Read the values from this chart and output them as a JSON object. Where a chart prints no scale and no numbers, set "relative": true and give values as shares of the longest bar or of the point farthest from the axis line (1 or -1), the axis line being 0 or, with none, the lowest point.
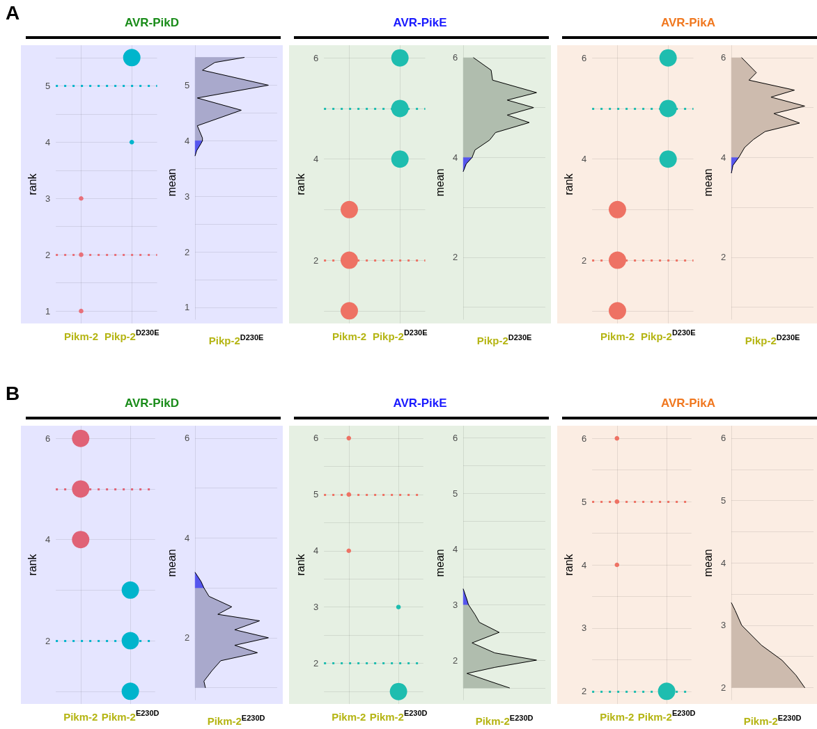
{
  "chart_data": [
    {
      "type": "bubble",
      "title": "AVR-PikD",
      "annotations": [
        "A"
      ],
      "ylabel": "rank",
      "categories": [
        "Pikm-2",
        "Pikp-2$^{D230E}$"
      ],
      "ylim": [
        0.78,
        5.72
      ],
      "yticks": [
        1,
        {
          "value": 1.5,
          "label": null
        },
        2,
        {
          "value": 2.5,
          "label": null
        },
        3,
        {
          "value": 3.5,
          "label": null
        },
        4,
        {
          "value": 4.5,
          "label": null
        },
        5,
        {
          "value": 5.5,
          "label": null
        }
      ],
      "grid": true,
      "ref_lines": [
        {
          "axis": "y",
          "value": 2,
          "color": "#e8707a",
          "line_style": "dotted"
        },
        {
          "axis": "y",
          "value": 5,
          "color": "#00b5cc",
          "line_style": "dotted"
        }
      ],
      "series": [
        {
          "color": "#e8707a",
          "x": [
            "Pikm-2",
            "Pikm-2",
            "Pikm-2"
          ],
          "values": [
            1,
            2,
            3
          ],
          "sizes": [
            0.07,
            0.07,
            0.07
          ]
        },
        {
          "color": "#00b5cc",
          "x": [
            "Pikp-2$^{D230E}$",
            "Pikp-2$^{D230E}$"
          ],
          "values": [
            4,
            5.5
          ],
          "sizes": [
            0.07,
            1
          ]
        }
      ]
    },
    {
      "type": "area",
      "orientation": "horizontal",
      "relative": true,
      "ylabel": "mean",
      "xlabel": "Pikp-2$^{D230E}$",
      "ylim": [
        0.78,
        5.72
      ],
      "yticks": [
        1,
        {
          "value": 1.5,
          "label": null
        },
        2,
        {
          "value": 2.5,
          "label": null
        },
        3,
        {
          "value": 3.5,
          "label": null
        },
        4,
        {
          "value": 4.5,
          "label": null
        },
        5,
        {
          "value": 5.5,
          "label": null
        }
      ],
      "grid": true,
      "series": [
        {
          "color": "#a9a9cc",
          "x": [
            5.5,
            5.41,
            5.27,
            5.0,
            4.77,
            4.55,
            4.27,
            4.05,
            4.0
          ],
          "values": [
            0.67,
            0.27,
            0.1,
            1.0,
            0.03,
            0.63,
            0.03,
            0.1,
            0.1
          ]
        },
        {
          "color": "#5555ee",
          "x": [
            4.0,
            3.95,
            3.82,
            3.73
          ],
          "values": [
            0.1,
            0.08,
            0.02,
            0
          ]
        }
      ]
    },
    {
      "type": "bubble",
      "title": "AVR-PikE",
      "ylabel": "rank",
      "categories": [
        "Pikm-2",
        "Pikp-2$^{D230E}$"
      ],
      "ylim": [
        0.75,
        6.25
      ],
      "yticks": [
        {
          "value": 1,
          "label": null
        },
        2,
        {
          "value": 3,
          "label": null
        },
        4,
        {
          "value": 5,
          "label": null
        },
        6
      ],
      "grid": true,
      "ref_lines": [
        {
          "axis": "y",
          "value": 2,
          "color": "#ee7264",
          "line_style": "dotted"
        },
        {
          "axis": "y",
          "value": 5,
          "color": "#1ebdaf",
          "line_style": "dotted"
        }
      ],
      "series": [
        {
          "color": "#ee7264",
          "x": [
            "Pikm-2",
            "Pikm-2",
            "Pikm-2"
          ],
          "values": [
            1,
            2,
            3
          ],
          "sizes": [
            1,
            1,
            1
          ]
        },
        {
          "color": "#1ebdaf",
          "x": [
            "Pikp-2$^{D230E}$",
            "Pikp-2$^{D230E}$",
            "Pikp-2$^{D230E}$"
          ],
          "values": [
            4,
            5,
            6
          ],
          "sizes": [
            1,
            1,
            1
          ]
        }
      ]
    },
    {
      "type": "area",
      "orientation": "horizontal",
      "relative": true,
      "ylabel": "mean",
      "xlabel": "Pikp-2$^{D230E}$",
      "ylim": [
        0.75,
        6.25
      ],
      "yticks": [
        {
          "value": 1,
          "label": null
        },
        2,
        {
          "value": 3,
          "label": null
        },
        4,
        {
          "value": 5,
          "label": null
        },
        6
      ],
      "grid": true,
      "series": [
        {
          "color": "#b0bdae",
          "x": [
            6.0,
            5.75,
            5.55,
            5.3,
            5.15,
            5.0,
            4.85,
            4.7,
            4.5,
            4.35,
            4.15,
            4.0
          ],
          "values": [
            0.14,
            0.38,
            0.4,
            1.0,
            0.6,
            0.96,
            0.6,
            0.9,
            0.44,
            0.36,
            0.16,
            0.12
          ]
        },
        {
          "color": "#5555ee",
          "x": [
            4.0,
            3.87,
            3.72
          ],
          "values": [
            0.12,
            0.04,
            0
          ]
        }
      ]
    },
    {
      "type": "bubble",
      "title": "AVR-PikA",
      "ylabel": "rank",
      "categories": [
        "Pikm-2",
        "Pikp-2$^{D230E}$"
      ],
      "ylim": [
        0.75,
        6.25
      ],
      "yticks": [
        {
          "value": 1,
          "label": null
        },
        2,
        {
          "value": 3,
          "label": null
        },
        4,
        {
          "value": 5,
          "label": null
        },
        6
      ],
      "grid": true,
      "ref_lines": [
        {
          "axis": "y",
          "value": 2,
          "color": "#ee7264",
          "line_style": "dotted"
        },
        {
          "axis": "y",
          "value": 5,
          "color": "#1ebdaf",
          "line_style": "dotted"
        }
      ],
      "series": [
        {
          "color": "#ee7264",
          "x": [
            "Pikm-2",
            "Pikm-2",
            "Pikm-2"
          ],
          "values": [
            1,
            2,
            3
          ],
          "sizes": [
            1,
            1,
            1
          ]
        },
        {
          "color": "#1ebdaf",
          "x": [
            "Pikp-2$^{D230E}$",
            "Pikp-2$^{D230E}$",
            "Pikp-2$^{D230E}$"
          ],
          "values": [
            4,
            5,
            6
          ],
          "sizes": [
            1,
            1,
            1
          ]
        }
      ]
    },
    {
      "type": "area",
      "orientation": "horizontal",
      "relative": true,
      "ylabel": "mean",
      "xlabel": "Pikp-2$^{D230E}$",
      "ylim": [
        0.75,
        6.25
      ],
      "yticks": [
        {
          "value": 1,
          "label": null
        },
        2,
        {
          "value": 3,
          "label": null
        },
        4,
        {
          "value": 5,
          "label": null
        },
        6
      ],
      "grid": true,
      "series": [
        {
          "color": "#cdbbae",
          "x": [
            6.0,
            5.7,
            5.55,
            5.35,
            5.21,
            5.03,
            4.88,
            4.69,
            4.52,
            4.36,
            4.2,
            4.0
          ],
          "values": [
            0.14,
            0.34,
            0.24,
            0.86,
            0.54,
            1.0,
            0.58,
            0.93,
            0.46,
            0.3,
            0.18,
            0.1
          ]
        },
        {
          "color": "#5555ee",
          "x": [
            4.0,
            3.84,
            3.69
          ],
          "values": [
            0.1,
            0.02,
            0
          ]
        }
      ]
    },
    {
      "type": "bubble",
      "title": "AVR-PikD",
      "annotations": [
        "B"
      ],
      "ylabel": "rank",
      "categories": [
        "Pikm-2",
        "Pikm-2$^{E230D}$"
      ],
      "ylim": [
        0.75,
        6.25
      ],
      "yticks": [
        {
          "value": 1,
          "label": null
        },
        2,
        {
          "value": 3,
          "label": null
        },
        4,
        {
          "value": 5,
          "label": null
        },
        6
      ],
      "grid": true,
      "ref_lines": [
        {
          "axis": "y",
          "value": 5,
          "color": "#e06276",
          "line_style": "dotted"
        },
        {
          "axis": "y",
          "value": 2,
          "color": "#00b4cc",
          "line_style": "dotted"
        }
      ],
      "series": [
        {
          "color": "#e06276",
          "x": [
            "Pikm-2",
            "Pikm-2",
            "Pikm-2"
          ],
          "values": [
            4,
            5,
            6
          ],
          "sizes": [
            1,
            1,
            1
          ]
        },
        {
          "color": "#00b4cc",
          "x": [
            "Pikm-2$^{E230D}$",
            "Pikm-2$^{E230D}$",
            "Pikm-2$^{E230D}$"
          ],
          "values": [
            1,
            2,
            3
          ],
          "sizes": [
            1,
            1,
            1
          ]
        }
      ]
    },
    {
      "type": "area",
      "orientation": "horizontal",
      "relative": true,
      "ylabel": "mean",
      "xlabel": "Pikm-2$^{E230D}$",
      "ylim": [
        0.75,
        6.25
      ],
      "yticks": [
        {
          "value": 1,
          "label": null
        },
        2,
        {
          "value": 3,
          "label": null
        },
        4,
        {
          "value": 5,
          "label": null
        },
        6
      ],
      "grid": true,
      "series": [
        {
          "color": "#a9a9cc",
          "x": [
            3.0,
            2.83,
            2.62,
            2.47,
            2.34,
            2.16,
            2.0,
            1.85,
            1.7,
            1.54,
            1.34,
            1.13,
            1.0
          ],
          "values": [
            0.12,
            0.19,
            0.5,
            0.31,
            0.88,
            0.54,
            1.0,
            0.54,
            0.85,
            0.35,
            0.23,
            0.12,
            0.14
          ]
        },
        {
          "color": "#5555ee",
          "x": [
            3.31,
            3.13,
            3.0
          ],
          "values": [
            0,
            0.08,
            0.12
          ]
        }
      ]
    },
    {
      "type": "bubble",
      "title": "AVR-PikE",
      "ylabel": "rank",
      "categories": [
        "Pikm-2",
        "Pikm-2$^{E230D}$"
      ],
      "ylim": [
        1.28,
        6.22
      ],
      "yticks": [
        {
          "value": 1.5,
          "label": null
        },
        2,
        {
          "value": 2.5,
          "label": null
        },
        3,
        {
          "value": 3.5,
          "label": null
        },
        4,
        {
          "value": 4.5,
          "label": null
        },
        5,
        {
          "value": 5.5,
          "label": null
        },
        6
      ],
      "grid": true,
      "ref_lines": [
        {
          "axis": "y",
          "value": 5,
          "color": "#ee7264",
          "line_style": "dotted"
        },
        {
          "axis": "y",
          "value": 2,
          "color": "#1ebdaf",
          "line_style": "dotted"
        }
      ],
      "series": [
        {
          "color": "#ee7264",
          "x": [
            "Pikm-2",
            "Pikm-2",
            "Pikm-2"
          ],
          "values": [
            4,
            5,
            6
          ],
          "sizes": [
            0.07,
            0.07,
            0.07
          ]
        },
        {
          "color": "#1ebdaf",
          "x": [
            "Pikm-2$^{E230D}$",
            "Pikm-2$^{E230D}$"
          ],
          "values": [
            1.5,
            3
          ],
          "sizes": [
            1,
            0.07
          ]
        }
      ]
    },
    {
      "type": "area",
      "orientation": "horizontal",
      "relative": true,
      "ylabel": "mean",
      "xlabel": "Pikm-2$^{E230D}$",
      "ylim": [
        1.28,
        6.22
      ],
      "yticks": [
        {
          "value": 1.5,
          "label": null
        },
        2,
        {
          "value": 2.5,
          "label": null
        },
        3,
        {
          "value": 3.5,
          "label": null
        },
        4,
        {
          "value": 4.5,
          "label": null
        },
        5,
        {
          "value": 5.5,
          "label": null
        },
        6
      ],
      "grid": true,
      "series": [
        {
          "color": "#b0bdae",
          "x": [
            3.0,
            2.82,
            2.68,
            2.5,
            2.31,
            2.13,
            2.0,
            1.87,
            1.76,
            1.62,
            1.5
          ],
          "values": [
            0.07,
            0.16,
            0.22,
            0.49,
            0.12,
            0.43,
            1.0,
            0.43,
            0.05,
            0.36,
            0.63
          ]
        },
        {
          "color": "#5555ee",
          "x": [
            3.28,
            3.09,
            3.0
          ],
          "values": [
            0,
            0.05,
            0.07
          ]
        }
      ]
    },
    {
      "type": "bubble",
      "title": "AVR-PikA",
      "ylabel": "rank",
      "categories": [
        "Pikm-2",
        "Pikm-2$^{E230D}$"
      ],
      "ylim": [
        1.8,
        6.2
      ],
      "yticks": [
        2,
        {
          "value": 2.5,
          "label": null
        },
        3,
        {
          "value": 3.5,
          "label": null
        },
        4,
        {
          "value": 4.5,
          "label": null
        },
        5,
        {
          "value": 5.5,
          "label": null
        },
        6
      ],
      "grid": true,
      "ref_lines": [
        {
          "axis": "y",
          "value": 5,
          "color": "#ee7264",
          "line_style": "dotted"
        },
        {
          "axis": "y",
          "value": 2,
          "color": "#1ebdaf",
          "line_style": "dotted"
        }
      ],
      "series": [
        {
          "color": "#ee7264",
          "x": [
            "Pikm-2",
            "Pikm-2",
            "Pikm-2"
          ],
          "values": [
            4,
            5,
            6
          ],
          "sizes": [
            0.07,
            0.07,
            0.07
          ]
        },
        {
          "color": "#1ebdaf",
          "x": [
            "Pikm-2$^{E230D}$"
          ],
          "values": [
            2
          ],
          "sizes": [
            1
          ]
        }
      ]
    },
    {
      "type": "area",
      "orientation": "horizontal",
      "relative": true,
      "ylabel": "mean",
      "xlabel": "Pikm-2$^{E230D}$",
      "ylim": [
        1.8,
        6.2
      ],
      "yticks": [
        2,
        {
          "value": 2.5,
          "label": null
        },
        3,
        {
          "value": 3.5,
          "label": null
        },
        4,
        {
          "value": 4.5,
          "label": null
        },
        5,
        {
          "value": 5.5,
          "label": null
        },
        6
      ],
      "grid": true,
      "series": [
        {
          "color": "#cdbbae",
          "x": [
            3.36,
            3.24,
            3.0,
            2.68,
            2.44,
            2.2,
            2.0
          ],
          "values": [
            0,
            0.05,
            0.14,
            0.41,
            0.69,
            0.88,
            1.0
          ]
        }
      ]
    }
  ]
}
